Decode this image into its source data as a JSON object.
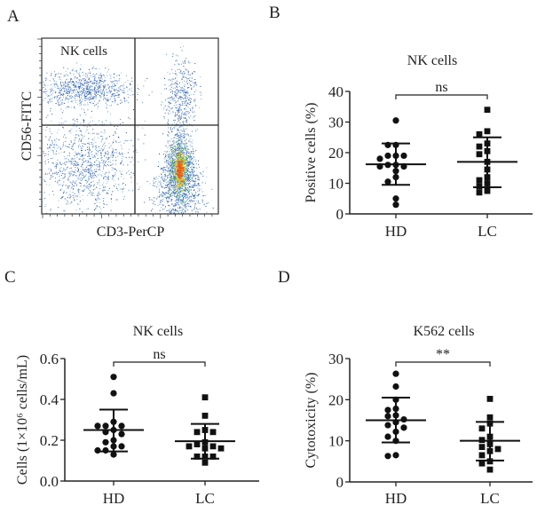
{
  "panel_a": {
    "letter": "A",
    "xlabel": "CD3-PerCP",
    "ylabel": "CD56-FITC",
    "gate_label": "NK cells"
  },
  "chart_data": [
    {
      "letter": "B",
      "type": "scatter",
      "title": "NK cells",
      "xlabel": "",
      "ylabel": "Positive cells (%)",
      "categories": [
        "HD",
        "LC"
      ],
      "ylim": [
        0,
        40
      ],
      "yticks": [
        0,
        10,
        20,
        30,
        40
      ],
      "ytick_labels": [
        "0",
        "10",
        "20",
        "30",
        "40"
      ],
      "significance": "ns",
      "series": [
        {
          "name": "HD",
          "marker": "circle",
          "values": [
            30.5,
            22.5,
            22.5,
            19,
            19,
            19,
            18,
            16,
            16,
            15.5,
            15.5,
            14,
            12,
            10.5,
            5,
            3
          ],
          "mean": 16.2,
          "sd_low": 9.5,
          "sd_high": 23
        },
        {
          "name": "LC",
          "marker": "square",
          "values": [
            34,
            27,
            26,
            23,
            22,
            20.5,
            19.5,
            17,
            14.5,
            12,
            11,
            10,
            9,
            7.5,
            7
          ],
          "mean": 17,
          "sd_low": 8.7,
          "sd_high": 25
        }
      ]
    },
    {
      "letter": "C",
      "type": "scatter",
      "title": "NK cells",
      "xlabel": "",
      "ylabel": "Cells (1×10⁶ cells/mL)",
      "categories": [
        "HD",
        "LC"
      ],
      "ylim": [
        0,
        0.6
      ],
      "yticks": [
        0,
        0.2,
        0.4,
        0.6
      ],
      "ytick_labels": [
        "0.0",
        "0.2",
        "0.4",
        "0.6"
      ],
      "significance": "ns",
      "series": [
        {
          "name": "HD",
          "marker": "circle",
          "values": [
            0.51,
            0.43,
            0.29,
            0.27,
            0.27,
            0.27,
            0.25,
            0.24,
            0.23,
            0.2,
            0.19,
            0.17,
            0.17,
            0.15,
            0.15,
            0.13
          ],
          "mean": 0.25,
          "sd_low": 0.145,
          "sd_high": 0.35
        },
        {
          "name": "LC",
          "marker": "square",
          "values": [
            0.41,
            0.32,
            0.25,
            0.24,
            0.24,
            0.19,
            0.18,
            0.17,
            0.17,
            0.16,
            0.16,
            0.12,
            0.12,
            0.12,
            0.09
          ],
          "mean": 0.195,
          "sd_low": 0.11,
          "sd_high": 0.28
        }
      ]
    },
    {
      "letter": "D",
      "type": "scatter",
      "title": "K562 cells",
      "xlabel": "",
      "ylabel": "Cytotoxicity (%)",
      "categories": [
        "HD",
        "LC"
      ],
      "ylim": [
        0,
        30
      ],
      "yticks": [
        0,
        10,
        20,
        30
      ],
      "ytick_labels": [
        "0",
        "10",
        "20",
        "30"
      ],
      "significance": "**",
      "series": [
        {
          "name": "HD",
          "marker": "circle",
          "values": [
            26.3,
            23.2,
            20,
            17.8,
            17.5,
            16.2,
            16,
            15.2,
            14.5,
            13.8,
            13.2,
            12.2,
            11,
            10,
            6.5,
            6.3
          ],
          "mean": 15,
          "sd_low": 9.6,
          "sd_high": 20.5
        },
        {
          "name": "LC",
          "marker": "square",
          "values": [
            20.2,
            15.7,
            14.2,
            13,
            11,
            10.2,
            9.2,
            8.5,
            8,
            7.5,
            6.5,
            5,
            4.5,
            3
          ],
          "mean": 10,
          "sd_low": 5.2,
          "sd_high": 14.6
        }
      ]
    }
  ]
}
